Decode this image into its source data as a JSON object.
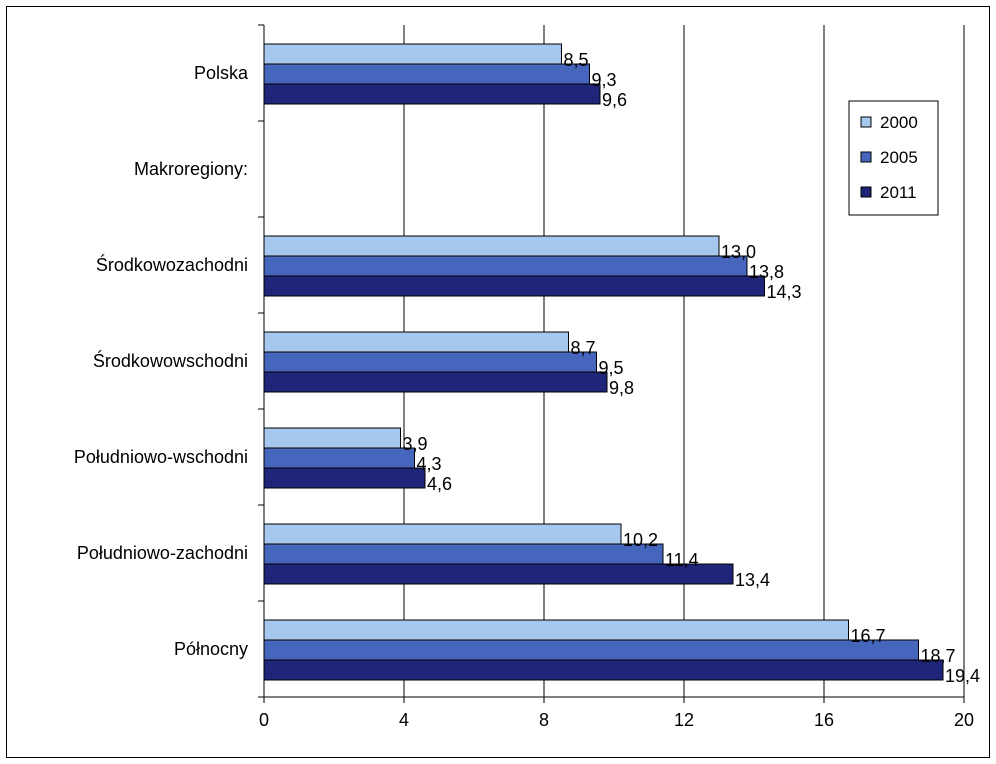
{
  "chart_data": {
    "type": "bar",
    "orientation": "horizontal",
    "categories": [
      "Polska",
      "Makroregiony:",
      "Środkowozachodni",
      "Środkowowschodni",
      "Południowo-wschodni",
      "Południowo-zachodni",
      "Północny"
    ],
    "series": [
      {
        "name": "2000",
        "color": "#a6c8ee",
        "values": [
          "8,5",
          null,
          "13,0",
          "8,7",
          "3,9",
          "10,2",
          "16,7"
        ]
      },
      {
        "name": "2005",
        "color": "#4666bd",
        "values": [
          "9,3",
          null,
          "13,8",
          "9,5",
          "4,3",
          "11,4",
          "18,7"
        ]
      },
      {
        "name": "2011",
        "color": "#1f2579",
        "values": [
          "9,6",
          null,
          "14,3",
          "9,8",
          "4,6",
          "13,4",
          "19,4"
        ]
      }
    ],
    "xlim": [
      0,
      20
    ],
    "xticks": [
      "0",
      "4",
      "8",
      "12",
      "16",
      "20"
    ],
    "grid": "vertical",
    "legend_position": "right"
  }
}
